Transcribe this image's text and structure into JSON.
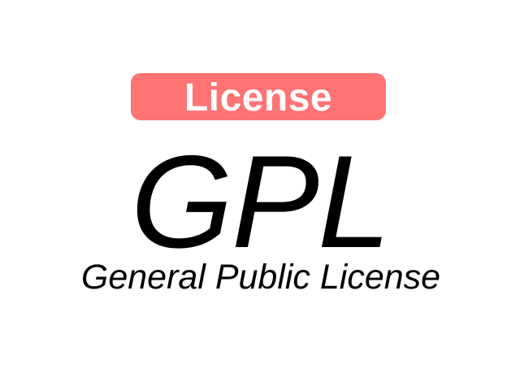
{
  "badge": {
    "label": "License",
    "color": "#ff7373",
    "text_color": "#ffffff"
  },
  "abbreviation": "GPL",
  "full_name": "General Public License",
  "text_color": "#000000",
  "background": "#ffffff"
}
